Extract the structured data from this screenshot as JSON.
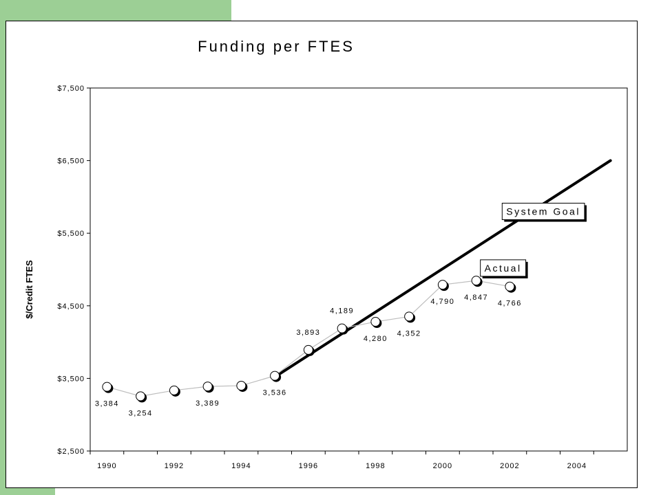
{
  "chart_data": {
    "type": "line",
    "title": "Funding per FTES",
    "ylabel": "$/Credit FTES",
    "xlabel": "",
    "ylim": [
      2500,
      7500
    ],
    "xlim": [
      1989.5,
      2005.5
    ],
    "yticks": [
      2500,
      3500,
      4500,
      5500,
      6500,
      7500
    ],
    "ytick_labels": [
      "$2,500",
      "$3,500",
      "$4,500",
      "$5,500",
      "$6,500",
      "$7,500"
    ],
    "xticks": [
      1990,
      1992,
      1994,
      1996,
      1998,
      2000,
      2002,
      2004
    ],
    "xtick_labels": [
      "1990",
      "1992",
      "1994",
      "1996",
      "1998",
      "2000",
      "2002",
      "2004"
    ],
    "grid": false,
    "series": [
      {
        "name": "Actual",
        "x": [
          1990,
          1991,
          1992,
          1993,
          1994,
          1995,
          1996,
          1997,
          1998,
          1999,
          2000,
          2001,
          2002
        ],
        "values": [
          3384,
          3254,
          3335,
          3389,
          3400,
          3536,
          3893,
          4189,
          4280,
          4352,
          4790,
          4847,
          4766
        ],
        "labels": [
          "3,384",
          "3,254",
          "",
          "3,389",
          "",
          "3,536",
          "3,893",
          "4,189",
          "4,280",
          "4,352",
          "4,790",
          "4,847",
          "4,766"
        ],
        "label_pos": [
          "below",
          "below",
          "below",
          "below",
          "below",
          "below",
          "above",
          "above",
          "below",
          "below",
          "below",
          "below",
          "below"
        ],
        "color": "#bdbdbd"
      },
      {
        "name": "System Goal",
        "x": [
          1995,
          2005
        ],
        "values": [
          3520,
          6500
        ],
        "color": "#000000"
      }
    ],
    "annotations": [
      {
        "text": "System Goal",
        "x": 2003.0,
        "y": 5800
      },
      {
        "text": "Actual",
        "x": 2001.8,
        "y": 5020
      }
    ]
  }
}
